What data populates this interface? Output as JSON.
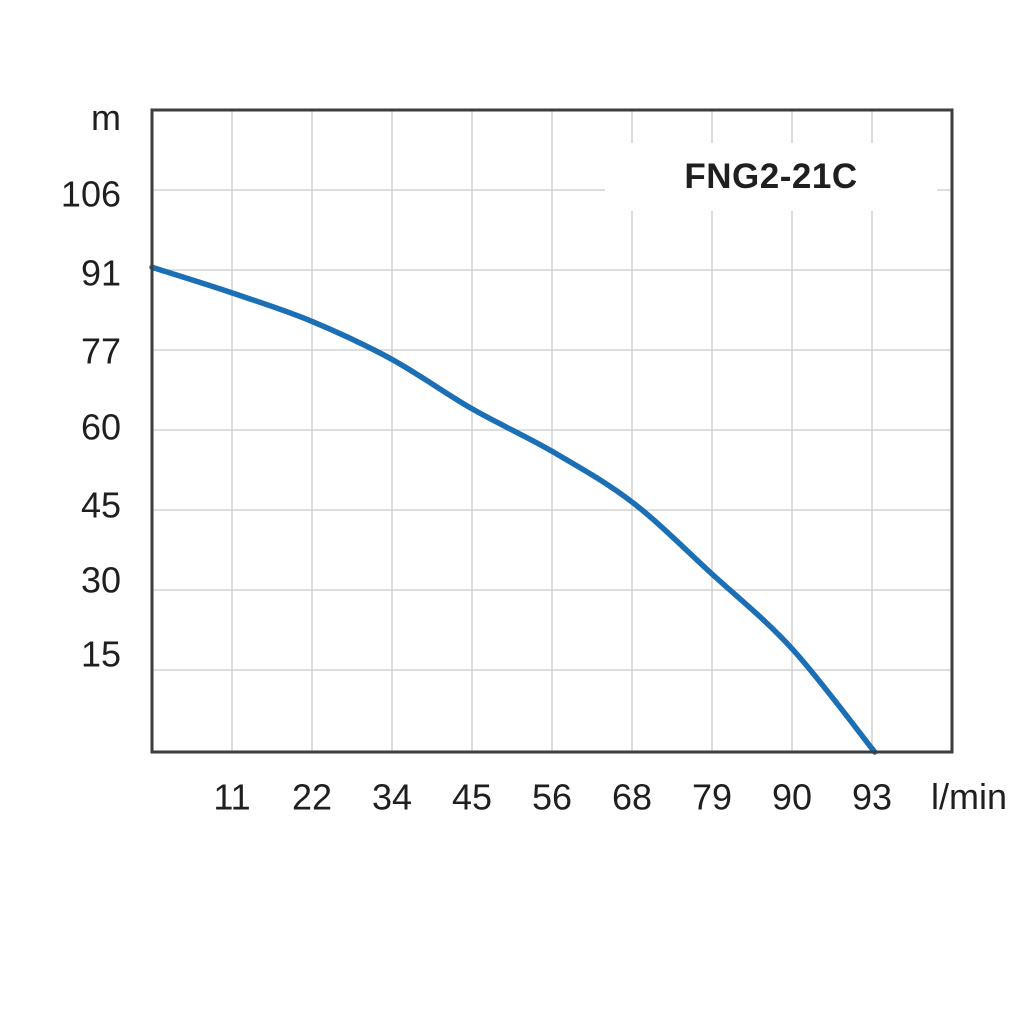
{
  "chart_data": {
    "type": "line",
    "title": "FNG2-21C",
    "xlabel": "l/min",
    "ylabel": "m",
    "x_ticks": [
      11,
      22,
      34,
      45,
      56,
      68,
      79,
      90,
      93
    ],
    "y_ticks": [
      106,
      91,
      77,
      60,
      45,
      30,
      15
    ],
    "xlim": [
      0,
      96
    ],
    "ylim": [
      0,
      120
    ],
    "grid": true,
    "legend": "none",
    "series": [
      {
        "name": "FNG2-21C head curve",
        "color": "#1a6fb5",
        "points": [
          [
            0,
            91.5
          ],
          [
            11,
            87
          ],
          [
            22,
            82
          ],
          [
            34,
            75
          ],
          [
            45,
            64.5
          ],
          [
            56,
            56
          ],
          [
            68,
            46.5
          ],
          [
            79,
            33
          ],
          [
            90,
            19
          ],
          [
            93.1,
            0
          ]
        ]
      }
    ]
  },
  "colors": {
    "curve": "#1a6fb5",
    "grid": "#c9c9c9",
    "border": "#3e3e3e",
    "text": "#1f1f1f",
    "background": "#ffffff"
  }
}
